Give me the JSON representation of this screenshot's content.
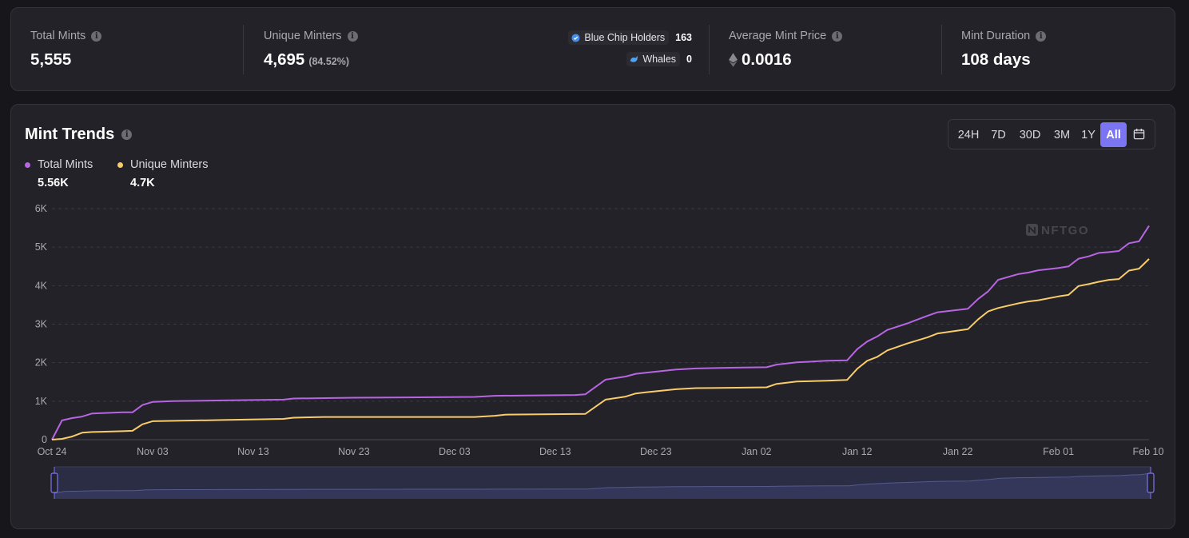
{
  "stats": {
    "total_mints": {
      "label": "Total Mints",
      "value": "5,555"
    },
    "unique_minters": {
      "label": "Unique Minters",
      "value": "4,695",
      "percent": "(84.52%)"
    },
    "holders": [
      {
        "label": "Blue Chip Holders",
        "count": "163",
        "icon": "blue-chip-icon"
      },
      {
        "label": "Whales",
        "count": "0",
        "icon": "whale-icon"
      }
    ],
    "avg_mint_price": {
      "label": "Average Mint Price",
      "value": "0.0016",
      "icon": "ethereum-icon"
    },
    "mint_duration": {
      "label": "Mint Duration",
      "value": "108 days"
    }
  },
  "trends": {
    "title": "Mint Trends",
    "ranges": [
      "24H",
      "7D",
      "30D",
      "3M",
      "1Y",
      "All"
    ],
    "active_range": "All",
    "legend": [
      {
        "label": "Total Mints",
        "value": "5.56K",
        "color": "#b865e3"
      },
      {
        "label": "Unique Minters",
        "value": "4.7K",
        "color": "#f8cc6a"
      }
    ],
    "watermark": "NFTGO"
  },
  "colors": {
    "accent": "#7b74f3",
    "total_mints_line": "#b865e3",
    "unique_minters_line": "#f8cc6a",
    "background": "#17161b",
    "card": "#232228"
  },
  "chart_data": {
    "type": "line",
    "x_tick_labels": [
      "Oct 24",
      "Nov 03",
      "Nov 13",
      "Nov 23",
      "Dec 03",
      "Dec 13",
      "Dec 23",
      "Jan 02",
      "Jan 12",
      "Jan 22",
      "Feb 01",
      "Feb 10"
    ],
    "y_tick_labels": [
      "0",
      "1K",
      "2K",
      "3K",
      "4K",
      "5K",
      "6K"
    ],
    "ylim": [
      0,
      6000
    ],
    "x_range": [
      "Oct 24",
      "Feb 10"
    ],
    "grid": "horizontal dashed",
    "series": [
      {
        "name": "Total Mints",
        "points": [
          [
            "Oct 24",
            0
          ],
          [
            "Oct 25",
            500
          ],
          [
            "Oct 26",
            560
          ],
          [
            "Oct 27",
            600
          ],
          [
            "Oct 28",
            680
          ],
          [
            "Oct 29",
            690
          ],
          [
            "Oct 31",
            710
          ],
          [
            "Nov 01",
            710
          ],
          [
            "Nov 02",
            900
          ],
          [
            "Nov 03",
            980
          ],
          [
            "Nov 05",
            1000
          ],
          [
            "Nov 10",
            1020
          ],
          [
            "Nov 16",
            1040
          ],
          [
            "Nov 17",
            1070
          ],
          [
            "Nov 23",
            1090
          ],
          [
            "Dec 05",
            1110
          ],
          [
            "Dec 07",
            1140
          ],
          [
            "Dec 15",
            1160
          ],
          [
            "Dec 16",
            1180
          ],
          [
            "Dec 18",
            1560
          ],
          [
            "Dec 20",
            1640
          ],
          [
            "Dec 21",
            1710
          ],
          [
            "Dec 22",
            1740
          ],
          [
            "Dec 25",
            1820
          ],
          [
            "Dec 27",
            1850
          ],
          [
            "Dec 31",
            1870
          ],
          [
            "Jan 03",
            1880
          ],
          [
            "Jan 04",
            1950
          ],
          [
            "Jan 06",
            2010
          ],
          [
            "Jan 09",
            2050
          ],
          [
            "Jan 11",
            2060
          ],
          [
            "Jan 12",
            2350
          ],
          [
            "Jan 13",
            2550
          ],
          [
            "Jan 14",
            2680
          ],
          [
            "Jan 15",
            2850
          ],
          [
            "Jan 17",
            3020
          ],
          [
            "Jan 19",
            3220
          ],
          [
            "Jan 20",
            3310
          ],
          [
            "Jan 23",
            3400
          ],
          [
            "Jan 24",
            3650
          ],
          [
            "Jan 25",
            3850
          ],
          [
            "Jan 26",
            4150
          ],
          [
            "Jan 28",
            4300
          ],
          [
            "Jan 29",
            4340
          ],
          [
            "Jan 30",
            4400
          ],
          [
            "Feb 01",
            4460
          ],
          [
            "Feb 02",
            4500
          ],
          [
            "Feb 03",
            4700
          ],
          [
            "Feb 04",
            4760
          ],
          [
            "Feb 05",
            4850
          ],
          [
            "Feb 06",
            4870
          ],
          [
            "Feb 07",
            4900
          ],
          [
            "Feb 08",
            5100
          ],
          [
            "Feb 09",
            5150
          ],
          [
            "Feb 10",
            5555
          ]
        ]
      },
      {
        "name": "Unique Minters",
        "points": [
          [
            "Oct 24",
            0
          ],
          [
            "Oct 25",
            20
          ],
          [
            "Oct 26",
            80
          ],
          [
            "Oct 27",
            180
          ],
          [
            "Oct 28",
            200
          ],
          [
            "Oct 31",
            220
          ],
          [
            "Nov 01",
            230
          ],
          [
            "Nov 02",
            400
          ],
          [
            "Nov 03",
            480
          ],
          [
            "Nov 10",
            510
          ],
          [
            "Nov 16",
            540
          ],
          [
            "Nov 17",
            570
          ],
          [
            "Nov 20",
            590
          ],
          [
            "Dec 05",
            590
          ],
          [
            "Dec 07",
            620
          ],
          [
            "Dec 08",
            650
          ],
          [
            "Dec 16",
            670
          ],
          [
            "Dec 18",
            1040
          ],
          [
            "Dec 20",
            1120
          ],
          [
            "Dec 21",
            1200
          ],
          [
            "Dec 22",
            1230
          ],
          [
            "Dec 25",
            1310
          ],
          [
            "Dec 27",
            1340
          ],
          [
            "Dec 31",
            1350
          ],
          [
            "Jan 03",
            1360
          ],
          [
            "Jan 04",
            1450
          ],
          [
            "Jan 06",
            1510
          ],
          [
            "Jan 09",
            1530
          ],
          [
            "Jan 11",
            1550
          ],
          [
            "Jan 12",
            1840
          ],
          [
            "Jan 13",
            2050
          ],
          [
            "Jan 14",
            2150
          ],
          [
            "Jan 15",
            2320
          ],
          [
            "Jan 17",
            2500
          ],
          [
            "Jan 19",
            2660
          ],
          [
            "Jan 20",
            2760
          ],
          [
            "Jan 23",
            2870
          ],
          [
            "Jan 24",
            3120
          ],
          [
            "Jan 25",
            3330
          ],
          [
            "Jan 26",
            3420
          ],
          [
            "Jan 28",
            3540
          ],
          [
            "Jan 29",
            3590
          ],
          [
            "Jan 30",
            3620
          ],
          [
            "Feb 01",
            3720
          ],
          [
            "Feb 02",
            3760
          ],
          [
            "Feb 03",
            3990
          ],
          [
            "Feb 04",
            4040
          ],
          [
            "Feb 05",
            4100
          ],
          [
            "Feb 06",
            4150
          ],
          [
            "Feb 07",
            4170
          ],
          [
            "Feb 08",
            4390
          ],
          [
            "Feb 09",
            4440
          ],
          [
            "Feb 10",
            4695
          ]
        ]
      }
    ]
  }
}
